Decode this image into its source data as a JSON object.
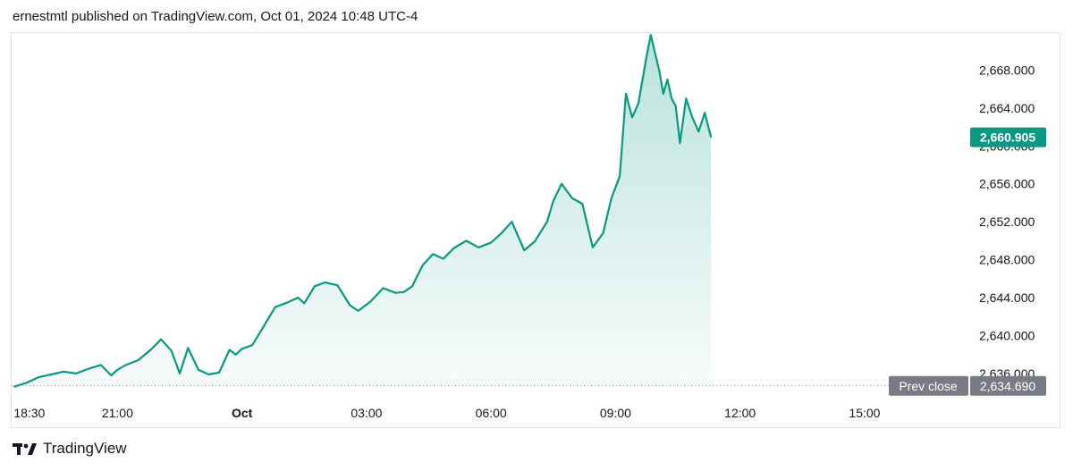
{
  "header": {
    "published_text": "ernestmtl published on TradingView.com, Oct 01, 2024 10:48 UTC-4"
  },
  "footer": {
    "brand": "TradingView",
    "logo_icon": "tradingview-logo-icon"
  },
  "colors": {
    "line": "#089981",
    "fill_top": "#089981",
    "prev_close_tag": "#787b86",
    "last_price_tag": "#089981"
  },
  "chart_data": {
    "type": "area",
    "x_axis": {
      "ticks": [
        {
          "label": "18:30",
          "hours": 0
        },
        {
          "label": "21:00",
          "hours": 2.5
        },
        {
          "label": "Oct",
          "hours": 5.5,
          "bold": true
        },
        {
          "label": "03:00",
          "hours": 8.5
        },
        {
          "label": "06:00",
          "hours": 11.5
        },
        {
          "label": "09:00",
          "hours": 14.5
        },
        {
          "label": "12:00",
          "hours": 17.5
        },
        {
          "label": "15:00",
          "hours": 20.5
        }
      ],
      "range_hours": [
        -0.05,
        23
      ]
    },
    "y_axis": {
      "ticks": [
        "2,636.000",
        "2,640.000",
        "2,644.000",
        "2,648.000",
        "2,652.000",
        "2,656.000",
        "2,660.000",
        "2,664.000",
        "2,668.000"
      ],
      "tick_values": [
        2636,
        2640,
        2644,
        2648,
        2652,
        2656,
        2660,
        2664,
        2668
      ],
      "range": [
        2634.2,
        2671.9
      ],
      "position": "right"
    },
    "last_price": {
      "value": 2660.905,
      "label": "2,660.905"
    },
    "prev_close": {
      "value": 2634.69,
      "label": "2,634.690",
      "title": "Prev close"
    },
    "series": [
      {
        "x_hours": [
          0,
          0.3,
          0.6,
          0.9,
          1.2,
          1.5,
          1.8,
          2.1,
          2.35,
          2.5,
          2.7,
          3.0,
          3.3,
          3.55,
          3.8,
          4.0,
          4.2,
          4.45,
          4.7,
          4.95,
          5.2,
          5.35,
          5.5,
          5.75,
          6.0,
          6.3,
          6.6,
          6.85,
          7.0,
          7.25,
          7.5,
          7.8,
          8.1,
          8.3,
          8.6,
          8.9,
          9.2,
          9.4,
          9.6,
          9.85,
          10.1,
          10.35,
          10.6,
          10.9,
          11.2,
          11.5,
          11.75,
          12.0,
          12.3,
          12.55,
          12.85,
          13.0,
          13.2,
          13.45,
          13.7,
          13.95,
          14.2,
          14.4,
          14.6,
          14.75,
          14.9,
          15.05,
          15.25,
          15.35,
          15.45,
          15.55,
          15.65,
          15.75,
          15.85,
          15.95,
          16.05,
          16.2,
          16.35,
          16.5,
          16.65,
          16.8
        ],
        "values": [
          2634.6,
          2635.0,
          2635.6,
          2635.9,
          2636.2,
          2636.0,
          2636.5,
          2636.9,
          2635.8,
          2636.4,
          2636.9,
          2637.4,
          2638.5,
          2639.6,
          2638.4,
          2636.0,
          2638.7,
          2636.4,
          2635.9,
          2636.1,
          2638.5,
          2638.0,
          2638.6,
          2639.0,
          2640.8,
          2643.0,
          2643.5,
          2644.0,
          2643.4,
          2645.2,
          2645.6,
          2645.3,
          2643.2,
          2642.6,
          2643.6,
          2645.0,
          2644.5,
          2644.6,
          2645.2,
          2647.4,
          2648.6,
          2648.1,
          2649.2,
          2650.0,
          2649.3,
          2649.8,
          2650.8,
          2652.0,
          2649.0,
          2649.9,
          2652.0,
          2654.2,
          2656.0,
          2654.5,
          2653.9,
          2649.3,
          2650.8,
          2654.5,
          2656.8,
          2665.5,
          2663.0,
          2664.5,
          2669.5,
          2671.7,
          2669.8,
          2668.0,
          2665.5,
          2667.0,
          2665.0,
          2664.2,
          2660.3,
          2665.0,
          2663.0,
          2661.5,
          2663.5,
          2660.905
        ]
      }
    ]
  }
}
